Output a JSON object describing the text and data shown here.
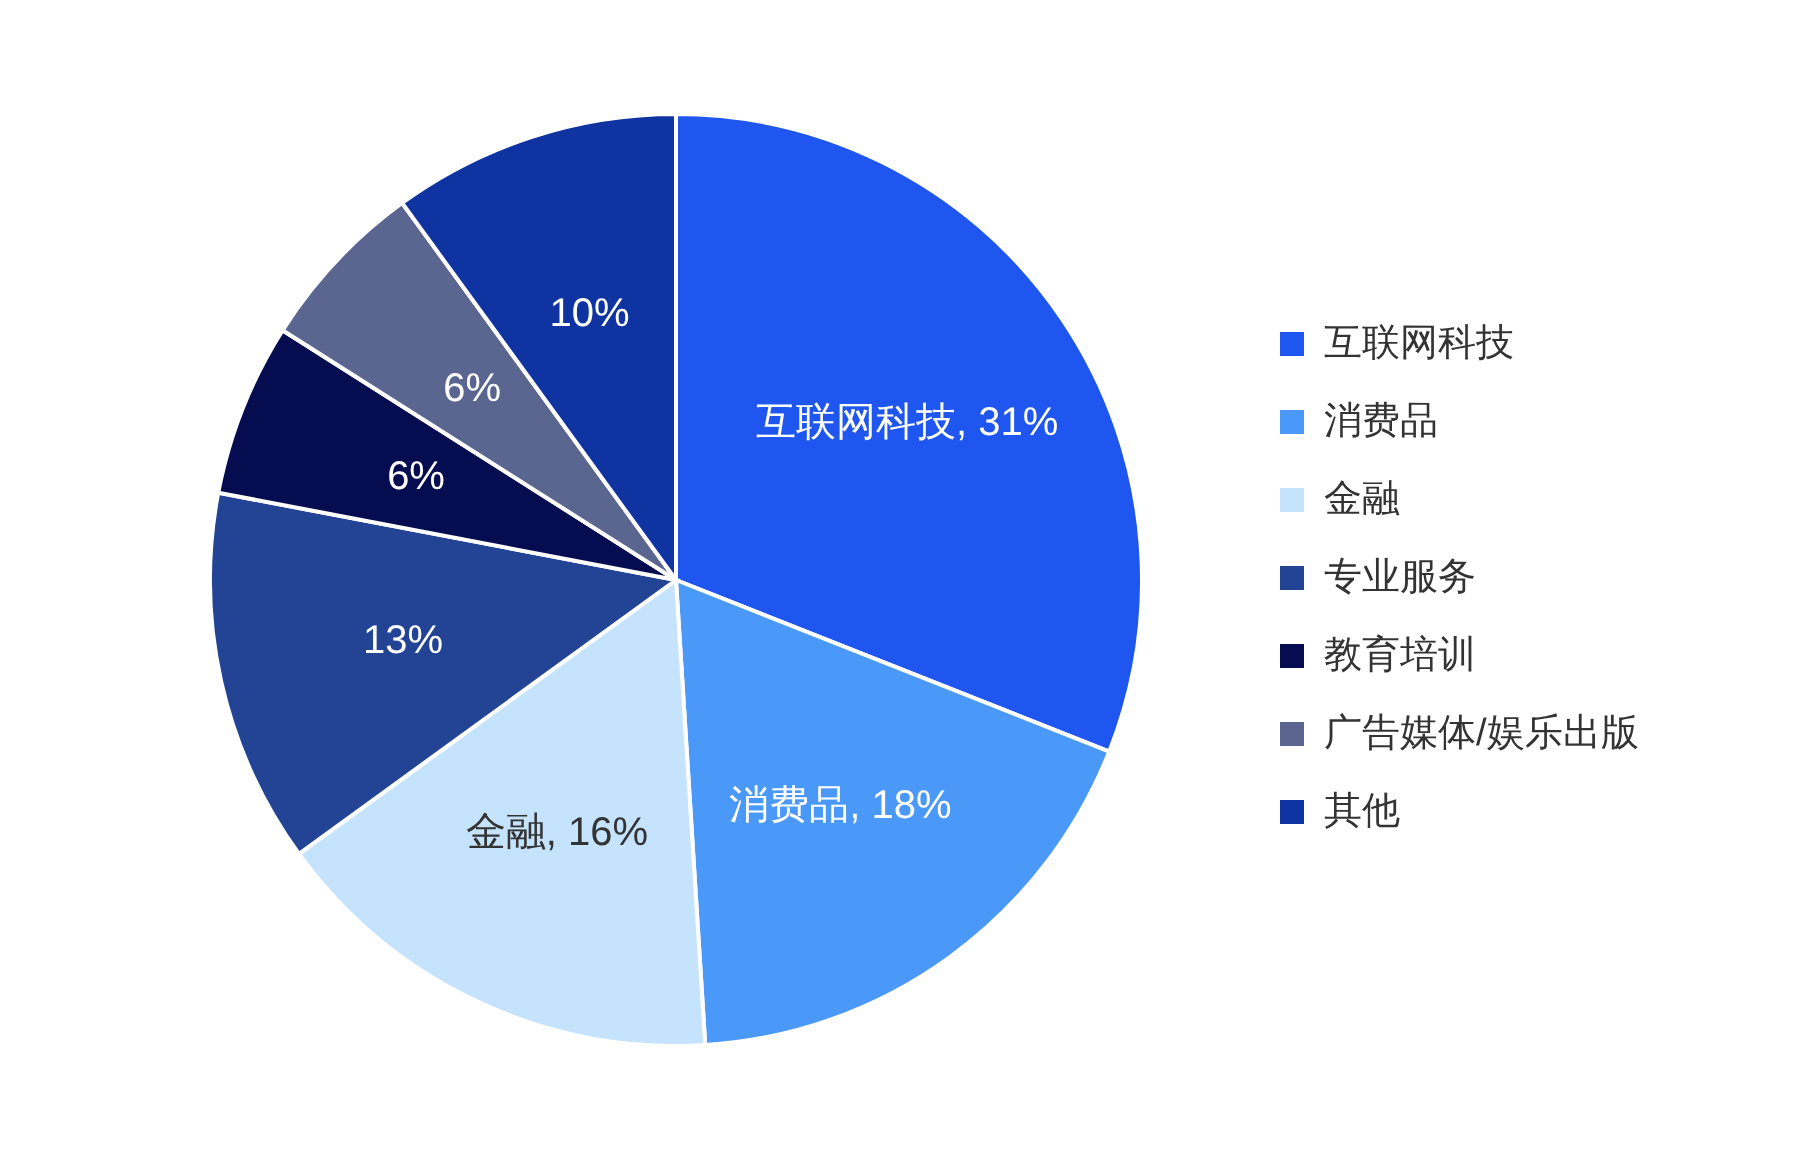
{
  "chart_data": {
    "type": "pie",
    "categories": [
      "互联网科技",
      "消费品",
      "金融",
      "专业服务",
      "教育培训",
      "广告媒体/娱乐出版",
      "其他"
    ],
    "values": [
      31,
      18,
      16,
      13,
      6,
      6,
      10
    ],
    "colors": [
      "#1f56f0",
      "#4a98f7",
      "#c5e3fd",
      "#234494",
      "#050d50",
      "#5a6690",
      "#0f33a0"
    ],
    "value_labels": [
      "互联网科技, 31%",
      "消费品, 18%",
      "金融, 16%",
      "13%",
      "6%",
      "6%",
      "10%"
    ],
    "legend": "right"
  }
}
